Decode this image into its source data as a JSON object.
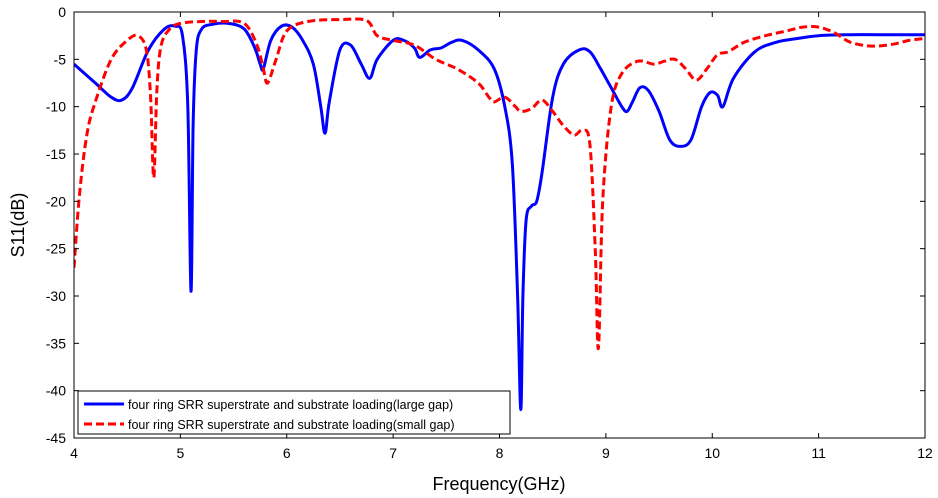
{
  "chart_data": {
    "type": "line",
    "xlabel": "Frequency(GHz)",
    "ylabel": "S11(dB)",
    "xlim": [
      4,
      12
    ],
    "ylim": [
      -45,
      0
    ],
    "xticks": [
      "4",
      "5",
      "6",
      "7",
      "8",
      "9",
      "10",
      "11",
      "12"
    ],
    "yticks": [
      "0",
      "-5",
      "-10",
      "-15",
      "-20",
      "-25",
      "-30",
      "-35",
      "-40",
      "-45"
    ],
    "grid": false,
    "legend_position": "bottom-left",
    "series": [
      {
        "name": "four ring SRR superstrate and substrate loading(large gap)",
        "color": "#0000ff",
        "style": "solid",
        "x": [
          4.0,
          4.2,
          4.35,
          4.45,
          4.55,
          4.7,
          4.85,
          4.95,
          5.02,
          5.07,
          5.1,
          5.12,
          5.15,
          5.2,
          5.3,
          5.45,
          5.6,
          5.7,
          5.75,
          5.78,
          5.85,
          5.95,
          6.05,
          6.15,
          6.25,
          6.32,
          6.36,
          6.4,
          6.5,
          6.6,
          6.7,
          6.78,
          6.85,
          7.0,
          7.1,
          7.2,
          7.25,
          7.35,
          7.45,
          7.55,
          7.65,
          7.8,
          7.95,
          8.05,
          8.12,
          8.17,
          8.2,
          8.22,
          8.25,
          8.3,
          8.35,
          8.4,
          8.5,
          8.6,
          8.75,
          8.85,
          8.95,
          9.05,
          9.15,
          9.2,
          9.25,
          9.32,
          9.4,
          9.5,
          9.6,
          9.7,
          9.8,
          9.9,
          9.98,
          10.05,
          10.1,
          10.2,
          10.4,
          10.6,
          10.8,
          11.0,
          11.3,
          11.6,
          12.0
        ],
        "y": [
          -5.5,
          -7.5,
          -9.0,
          -9.3,
          -8.0,
          -4.0,
          -1.8,
          -1.5,
          -2.5,
          -10.0,
          -29.5,
          -12.0,
          -4.0,
          -1.8,
          -1.3,
          -1.2,
          -1.8,
          -3.8,
          -5.5,
          -6.0,
          -3.0,
          -1.5,
          -1.6,
          -3.0,
          -5.5,
          -10.0,
          -12.8,
          -9.5,
          -4.0,
          -3.5,
          -5.5,
          -7.0,
          -5.0,
          -3.0,
          -3.0,
          -3.8,
          -4.8,
          -4.0,
          -3.8,
          -3.2,
          -3.0,
          -4.0,
          -6.0,
          -10.0,
          -16.0,
          -30.0,
          -42.0,
          -30.0,
          -22.0,
          -20.5,
          -20.0,
          -17.0,
          -9.0,
          -5.5,
          -4.0,
          -4.2,
          -6.0,
          -8.0,
          -10.0,
          -10.5,
          -9.5,
          -8.0,
          -8.3,
          -10.5,
          -13.5,
          -14.2,
          -13.5,
          -10.0,
          -8.5,
          -8.8,
          -10.0,
          -7.0,
          -4.2,
          -3.2,
          -2.8,
          -2.5,
          -2.4,
          -2.4,
          -2.4
        ]
      },
      {
        "name": "four ring SRR superstrate and substrate loading(small gap)",
        "color": "#ff0000",
        "style": "dashed",
        "x": [
          4.0,
          4.05,
          4.12,
          4.2,
          4.35,
          4.5,
          4.6,
          4.68,
          4.72,
          4.75,
          4.78,
          4.82,
          4.9,
          5.0,
          5.2,
          5.4,
          5.6,
          5.72,
          5.78,
          5.82,
          5.9,
          6.0,
          6.2,
          6.5,
          6.75,
          6.85,
          7.0,
          7.2,
          7.4,
          7.6,
          7.8,
          7.9,
          7.95,
          8.05,
          8.15,
          8.2,
          8.3,
          8.4,
          8.5,
          8.6,
          8.7,
          8.78,
          8.85,
          8.9,
          8.93,
          8.97,
          9.05,
          9.15,
          9.3,
          9.45,
          9.55,
          9.65,
          9.75,
          9.85,
          9.95,
          10.05,
          10.15,
          10.3,
          10.5,
          10.7,
          10.85,
          11.0,
          11.15,
          11.3,
          11.5,
          11.7,
          11.85,
          12.0
        ],
        "y": [
          -27.0,
          -19.5,
          -13.0,
          -9.5,
          -5.0,
          -3.0,
          -2.5,
          -4.0,
          -9.0,
          -17.5,
          -8.0,
          -3.5,
          -1.8,
          -1.2,
          -1.0,
          -1.0,
          -1.2,
          -3.5,
          -6.0,
          -7.5,
          -5.0,
          -2.0,
          -1.0,
          -0.8,
          -0.9,
          -2.5,
          -3.0,
          -3.5,
          -5.0,
          -6.0,
          -7.5,
          -9.0,
          -9.5,
          -9.0,
          -10.0,
          -10.5,
          -10.2,
          -9.3,
          -10.5,
          -12.0,
          -13.0,
          -12.5,
          -14.0,
          -25.0,
          -35.5,
          -20.0,
          -10.0,
          -6.5,
          -5.2,
          -5.5,
          -5.2,
          -5.0,
          -6.0,
          -7.2,
          -6.0,
          -4.5,
          -4.2,
          -3.2,
          -2.5,
          -2.0,
          -1.6,
          -1.6,
          -2.2,
          -3.2,
          -3.6,
          -3.4,
          -3.0,
          -2.8
        ]
      }
    ]
  }
}
